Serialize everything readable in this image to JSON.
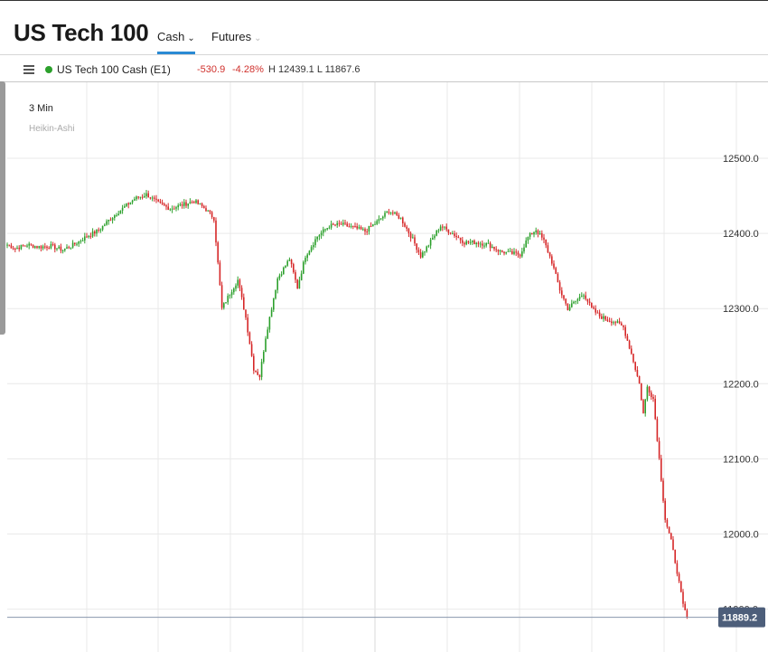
{
  "header": {
    "title": "US Tech 100",
    "tabs": [
      {
        "label": "Cash",
        "active": true
      },
      {
        "label": "Futures",
        "active": false
      }
    ]
  },
  "toolbar": {
    "instrument": "US Tech 100 Cash (E1)",
    "change": "-530.9",
    "change_pct": "-4.28%",
    "high_low": "H 12439.1  L 11867.6",
    "status_color": "#2ca02c"
  },
  "chart": {
    "interval": "3 Min",
    "chart_type_label": "Heikin-Ashi",
    "last_price_label": "11889.2",
    "colors": {
      "up": "#2ca02c",
      "down": "#d62728",
      "grid": "#e9e9e9",
      "badge": "#4d5e7a"
    }
  },
  "chart_data": {
    "type": "candlestick",
    "style": "Heikin-Ashi",
    "interval": "3 Min",
    "y_ticks": [
      12500,
      12400,
      12300,
      12200,
      12100,
      12000,
      11900
    ],
    "y_tick_labels": [
      "12500.0",
      "12400.0",
      "12300.0",
      "12200.0",
      "12100.0",
      "12000.0",
      "11900.0"
    ],
    "ylim": [
      11860,
      12600
    ],
    "last_price": 11889.2,
    "path": [
      [
        0,
        12385
      ],
      [
        4,
        12380
      ],
      [
        10,
        12385
      ],
      [
        16,
        12382
      ],
      [
        22,
        12383
      ],
      [
        28,
        12378
      ],
      [
        34,
        12386
      ],
      [
        40,
        12396
      ],
      [
        46,
        12404
      ],
      [
        52,
        12420
      ],
      [
        58,
        12433
      ],
      [
        64,
        12446
      ],
      [
        70,
        12452
      ],
      [
        76,
        12440
      ],
      [
        82,
        12433
      ],
      [
        88,
        12438
      ],
      [
        94,
        12443
      ],
      [
        100,
        12432
      ],
      [
        104,
        12420
      ],
      [
        108,
        12300
      ],
      [
        112,
        12320
      ],
      [
        116,
        12338
      ],
      [
        120,
        12288
      ],
      [
        124,
        12220
      ],
      [
        127,
        12210
      ],
      [
        130,
        12262
      ],
      [
        136,
        12340
      ],
      [
        142,
        12366
      ],
      [
        146,
        12328
      ],
      [
        150,
        12370
      ],
      [
        156,
        12396
      ],
      [
        162,
        12410
      ],
      [
        168,
        12412
      ],
      [
        174,
        12408
      ],
      [
        180,
        12403
      ],
      [
        186,
        12415
      ],
      [
        192,
        12430
      ],
      [
        198,
        12420
      ],
      [
        204,
        12392
      ],
      [
        208,
        12370
      ],
      [
        212,
        12385
      ],
      [
        218,
        12410
      ],
      [
        224,
        12400
      ],
      [
        230,
        12388
      ],
      [
        236,
        12388
      ],
      [
        242,
        12385
      ],
      [
        248,
        12376
      ],
      [
        252,
        12374
      ],
      [
        258,
        12372
      ],
      [
        262,
        12395
      ],
      [
        266,
        12405
      ],
      [
        270,
        12390
      ],
      [
        274,
        12362
      ],
      [
        278,
        12325
      ],
      [
        282,
        12300
      ],
      [
        286,
        12310
      ],
      [
        290,
        12320
      ],
      [
        294,
        12300
      ],
      [
        298,
        12290
      ],
      [
        302,
        12285
      ],
      [
        306,
        12282
      ],
      [
        310,
        12275
      ],
      [
        314,
        12240
      ],
      [
        318,
        12200
      ],
      [
        320,
        12160
      ],
      [
        322,
        12196
      ],
      [
        325,
        12180
      ],
      [
        328,
        12100
      ],
      [
        331,
        12020
      ],
      [
        334,
        11990
      ],
      [
        337,
        11950
      ],
      [
        340,
        11905
      ],
      [
        342,
        11889
      ]
    ]
  }
}
